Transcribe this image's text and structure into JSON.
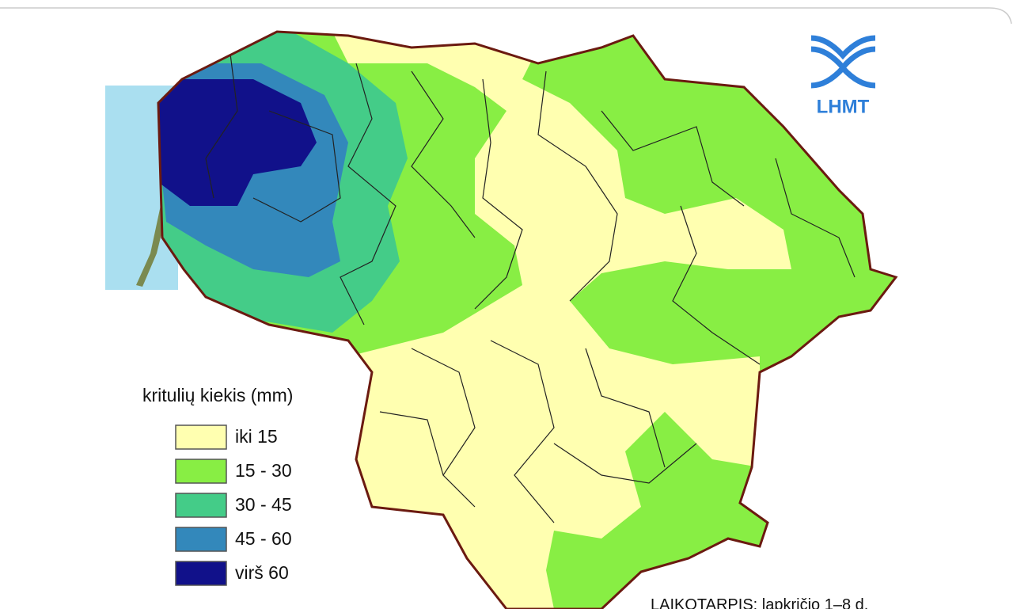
{
  "logo": {
    "text": "LHMT"
  },
  "legend": {
    "title": "kritulių kiekis (mm)",
    "items": [
      {
        "label": "iki 15",
        "color": "#ffffb0"
      },
      {
        "label": "15 - 30",
        "color": "#88ee44"
      },
      {
        "label": "30 - 45",
        "color": "#44cc88"
      },
      {
        "label": "45 - 60",
        "color": "#3388bb"
      },
      {
        "label": "virš 60",
        "color": "#11118a"
      }
    ]
  },
  "period": "LAIKOTARPIS: lapkričio 1–8 d."
}
